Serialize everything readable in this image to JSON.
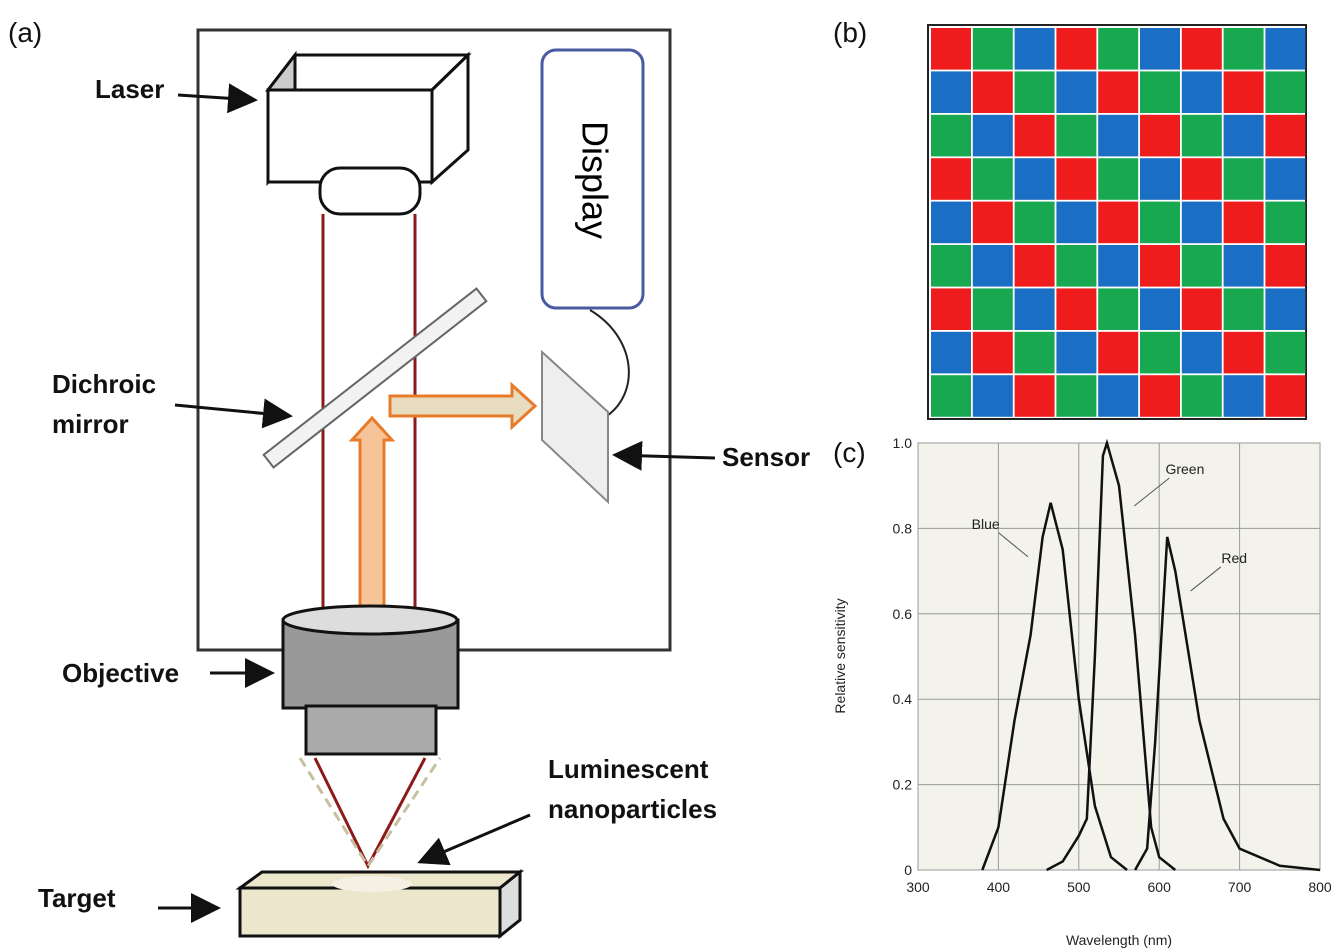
{
  "panel_a": {
    "label": "(a)",
    "laser": "Laser",
    "display": "Display",
    "mirror": [
      "Dichroic",
      "mirror"
    ],
    "sensor": "Sensor",
    "objective": "Objective",
    "particles": [
      "Luminescent",
      "nanoparticles"
    ],
    "target": "Target"
  },
  "panel_b": {
    "label": "(b)"
  },
  "chart_data": {
    "type": "line",
    "panel_label": "(c)",
    "x_label": "Wavelength (nm)",
    "y_label": "Relative sensitivity",
    "xlim": [
      300,
      800
    ],
    "ylim": [
      0,
      1
    ],
    "xticks": [
      300,
      400,
      500,
      600,
      700,
      800
    ],
    "yticks": [
      0,
      0.2,
      0.4,
      0.6,
      0.8,
      {
        "value": 1,
        "label": "1.0"
      }
    ],
    "grid": true,
    "series": [
      {
        "name": "Blue",
        "color": "#111111",
        "x": [
          380,
          400,
          420,
          440,
          455,
          465,
          480,
          500,
          520,
          540,
          560
        ],
        "values": [
          0,
          0.1,
          0.35,
          0.55,
          0.78,
          0.86,
          0.75,
          0.4,
          0.15,
          0.03,
          0
        ]
      },
      {
        "name": "Green",
        "color": "#111111",
        "x": [
          460,
          480,
          500,
          510,
          520,
          530,
          535,
          550,
          570,
          590,
          600,
          620
        ],
        "values": [
          0,
          0.02,
          0.08,
          0.12,
          0.5,
          0.97,
          1,
          0.9,
          0.55,
          0.1,
          0.03,
          0
        ]
      },
      {
        "name": "Red",
        "color": "#111111",
        "x": [
          570,
          585,
          595,
          610,
          620,
          650,
          680,
          700,
          750,
          800
        ],
        "values": [
          0,
          0.05,
          0.3,
          0.78,
          0.7,
          0.35,
          0.12,
          0.05,
          0.01,
          0
        ]
      }
    ]
  }
}
